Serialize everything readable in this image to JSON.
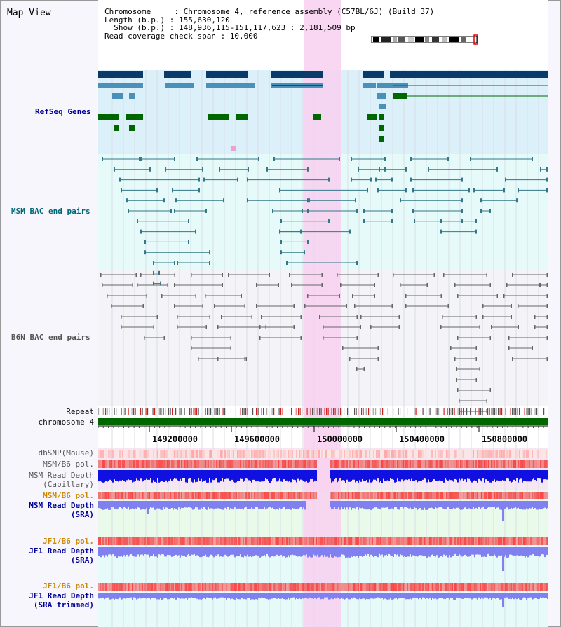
{
  "title": "Map View",
  "header": {
    "chromosome": "Chromosome     : Chromosome 4, reference assembly (C57BL/6J) (Build 37)",
    "length": "Length (b.p.) : 155,630,120",
    "show": "  Show (b.p.) : 148,936,115-151,117,623 : 2,181,509 bp",
    "coverage": "Read coverage check span : 10,000"
  },
  "tracks": {
    "refseq": "RefSeq Genes",
    "msm_bac": "MSM BAC end pairs",
    "b6n_bac": "B6N BAC end pairs",
    "repeat": "Repeat",
    "chromosome": "chromosome 4",
    "dbsnp": "dbSNP(Mouse)",
    "msm_b6_pol": "MSM/B6 pol.",
    "msm_depth_cap_1": "MSM Read Depth",
    "msm_depth_cap_2": "(Capillary)",
    "msm_b6_pol2": "MSM/B6 pol.",
    "msm_depth_sra_1": "MSM Read Depth",
    "msm_depth_sra_2": "(SRA)",
    "jf1_b6_pol": "JF1/B6 pol.",
    "jf1_depth_sra_1": "JF1 Read Depth",
    "jf1_depth_sra_2": "(SRA)",
    "jf1_b6_pol2": "JF1/B6 pol.",
    "jf1_depth_trim_1": "JF1 Read Depth",
    "jf1_depth_trim_2": "(SRA trimmed)"
  },
  "axis_ticks": [
    "149200000",
    "149600000",
    "150000000",
    "150400000",
    "150800000"
  ],
  "colors": {
    "refseq_bg": "#dcf0fa",
    "msm_bac_bg": "#e6fafa",
    "b6n_bg": "#f4f4f8",
    "highlight": "#f8d0f0",
    "navy_gene": "#0a3a6a",
    "blue_gene": "#4a90b8",
    "green_gene": "#006600",
    "depth_cap": "#1010e0",
    "depth_sra": "#8080f0",
    "pol_red": "#ee4444"
  }
}
